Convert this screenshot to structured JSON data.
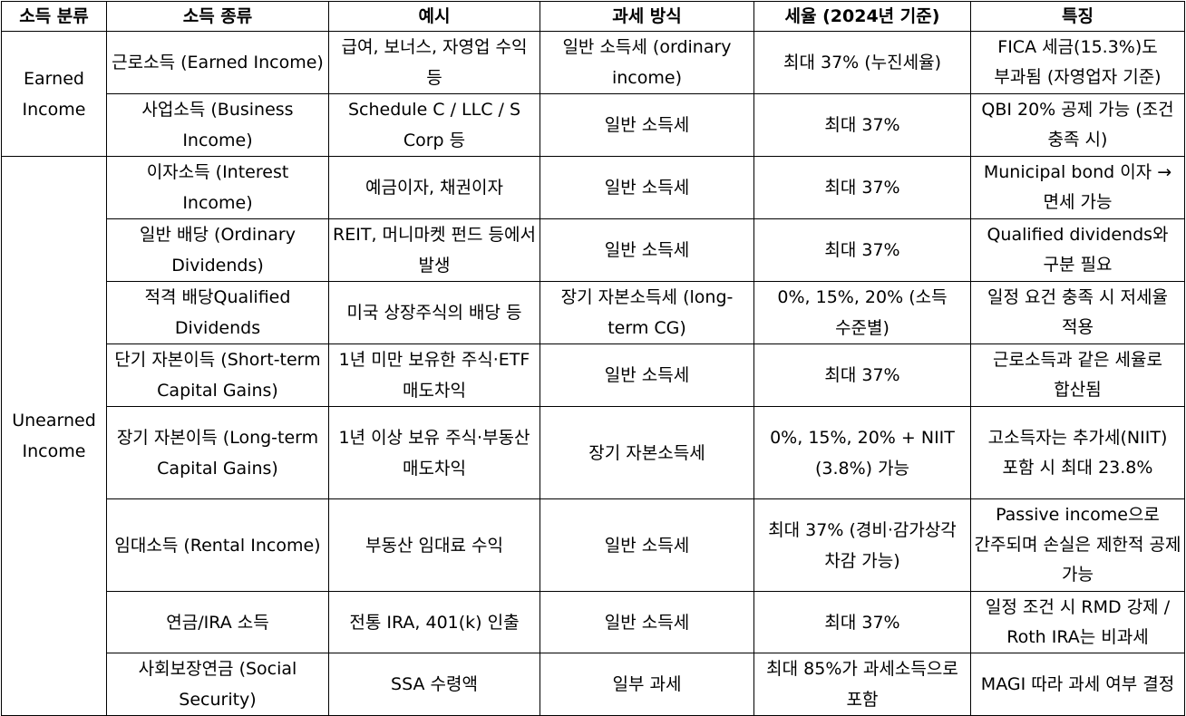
{
  "headers": [
    "소득 분류",
    "소득 종류",
    "예시",
    "과세 방식",
    "세율 (2024년 기준)",
    "특징"
  ],
  "groups": [
    {
      "category": "Earned Income"
    },
    {
      "category": "Unearned Income"
    }
  ],
  "rows": [
    {
      "type": "근로소득 (Earned Income)",
      "example": "급여, 보너스, 자영업 수익 등",
      "method": "일반 소득세 (ordinary income)",
      "rate": "최대 37% (누진세율)",
      "feature": "FICA 세금(15.3%)도 부과됨 (자영업자 기준)"
    },
    {
      "type": "사업소득 (Business Income)",
      "example": "Schedule C / LLC / S Corp 등",
      "method": "일반 소득세",
      "rate": "최대 37%",
      "feature": "QBI 20% 공제 가능 (조건 충족 시)"
    },
    {
      "type": "이자소득 (Interest Income)",
      "example": "예금이자, 채권이자",
      "method": "일반 소득세",
      "rate": "최대 37%",
      "feature": "Municipal bond 이자 → 면세 가능"
    },
    {
      "type": "일반 배당 (Ordinary Dividends)",
      "example": "REIT, 머니마켓 펀드 등에서 발생",
      "method": "일반 소득세",
      "rate": "최대 37%",
      "feature": "Qualified dividends와 구분 필요"
    },
    {
      "type": "적격 배당Qualified Dividends",
      "example": "미국 상장주식의 배당 등",
      "method": "장기 자본소득세 (long-term CG)",
      "rate": "0%, 15%, 20% (소득 수준별)",
      "feature": "일정 요건 충족 시 저세율 적용"
    },
    {
      "type": "단기 자본이득 (Short-term Capital Gains)",
      "example": "1년 미만 보유한 주식·ETF 매도차익",
      "method": "일반 소득세",
      "rate": "최대 37%",
      "feature": "근로소득과 같은 세율로 합산됨"
    },
    {
      "type": "장기 자본이득 (Long-term Capital Gains)",
      "example": "1년 이상 보유 주식·부동산 매도차익",
      "method": "장기 자본소득세",
      "rate": "0%, 15%, 20% + NIIT (3.8%) 가능",
      "feature": "고소득자는 추가세(NIIT) 포함 시 최대 23.8%"
    },
    {
      "type": "임대소득 (Rental Income)",
      "example": "부동산 임대료 수익",
      "method": "일반 소득세",
      "rate": "최대 37% (경비·감가상각 차감 가능)",
      "feature": "Passive income으로 간주되며 손실은 제한적 공제 가능"
    },
    {
      "type": "연금/IRA 소득",
      "example": "전통 IRA, 401(k) 인출",
      "method": "일반 소득세",
      "rate": "최대 37%",
      "feature": "일정 조건 시 RMD 강제 / Roth IRA는 비과세"
    },
    {
      "type": "사회보장연금 (Social Security)",
      "example": "SSA 수령액",
      "method": "일부 과세",
      "rate": "최대 85%가 과세소득으로 포함",
      "feature": "MAGI 따라 과세 여부 결정"
    }
  ]
}
